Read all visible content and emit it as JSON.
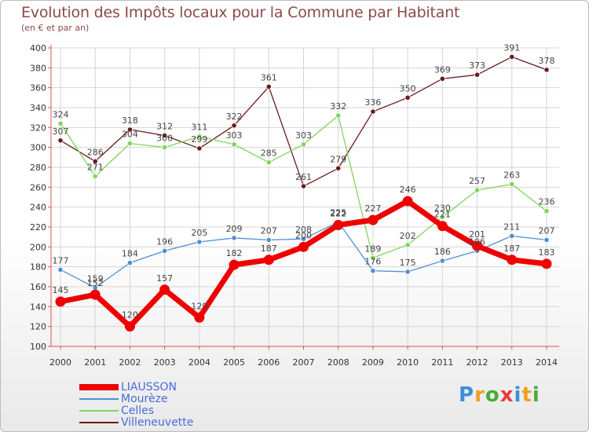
{
  "chart_data": {
    "type": "line",
    "title": "Evolution des Impôts locaux pour la Commune par Habitant",
    "subtitle": "(en € et par an)",
    "xlabel": "",
    "ylabel": "",
    "categories": [
      "2000",
      "2001",
      "2002",
      "2003",
      "2004",
      "2005",
      "2006",
      "2007",
      "2008",
      "2009",
      "2010",
      "2011",
      "2012",
      "2013",
      "2014"
    ],
    "ylim": [
      100,
      400
    ],
    "yticks": [
      100,
      120,
      140,
      160,
      180,
      200,
      220,
      240,
      260,
      280,
      300,
      320,
      340,
      360,
      380,
      400
    ],
    "grid": true,
    "series": [
      {
        "name": "LIAUSSON",
        "color": "#ee0000",
        "values": [
          145,
          152,
          120,
          157,
          129,
          182,
          187,
          200,
          222,
          227,
          246,
          221,
          201,
          187,
          183
        ]
      },
      {
        "name": "Mourèze",
        "color": "#4f8fd2",
        "values": [
          177,
          159,
          184,
          196,
          205,
          209,
          207,
          208,
          225,
          176,
          175,
          186,
          196,
          211,
          207
        ]
      },
      {
        "name": "Celles",
        "color": "#7ed65a",
        "values": [
          324,
          271,
          304,
          300,
          311,
          303,
          285,
          303,
          332,
          189,
          202,
          230,
          257,
          263,
          236
        ]
      },
      {
        "name": "Villeneuvette",
        "color": "#6b1a1a",
        "values": [
          307,
          286,
          318,
          312,
          299,
          322,
          361,
          261,
          279,
          336,
          350,
          369,
          373,
          391,
          378
        ]
      }
    ]
  },
  "logo": {
    "letters": [
      "P",
      "r",
      "o",
      "x",
      "i",
      "t",
      "i"
    ],
    "colors": [
      "#3a8fd8",
      "#f0a020",
      "#4aaa3a",
      "#e83a3a",
      "#3a8fd8",
      "#f0a020",
      "#4aaa3a"
    ]
  }
}
